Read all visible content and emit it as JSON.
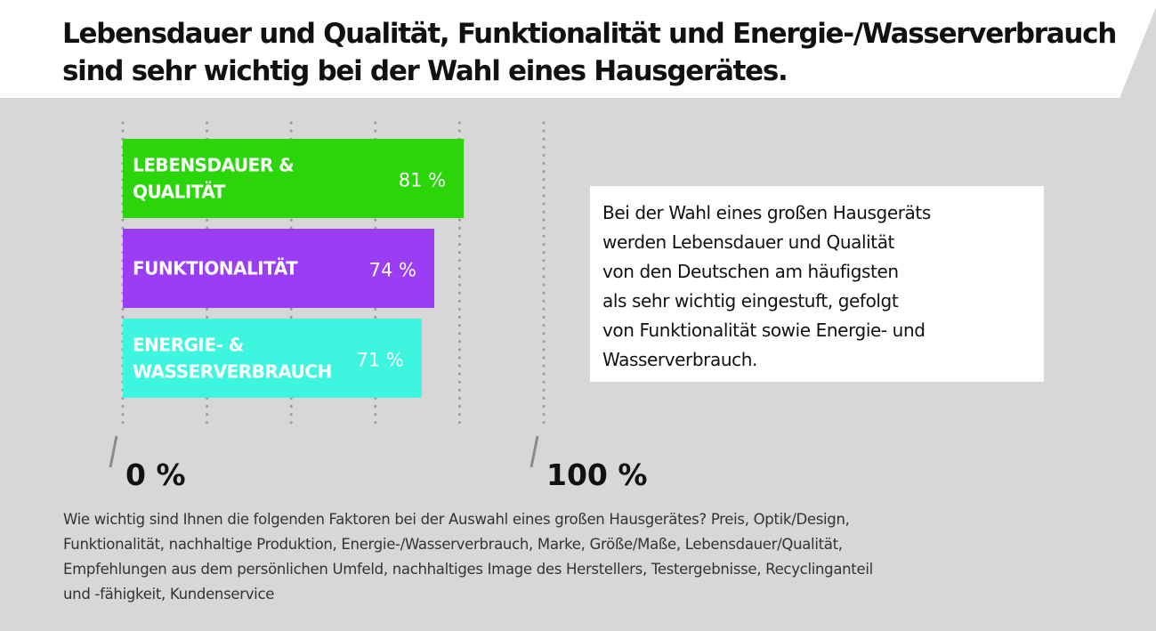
{
  "title": {
    "lines": [
      "Lebensdauer und Qualität, Funktionalität und Energie-/Wasserverbrauch",
      "sind sehr wichtig bei der Wahl eines Hausgerätes."
    ]
  },
  "colors": {
    "background": "#d7d7d7",
    "banner": "#ffffff",
    "grid": "#9a9a9a",
    "text": "#111111"
  },
  "chart_data": {
    "type": "bar",
    "orientation": "horizontal",
    "xlim": [
      0,
      100
    ],
    "grid": true,
    "categories": [
      {
        "label_lines": [
          "LEBENSDAUER &",
          "QUALITÄT"
        ],
        "value": 81,
        "value_label": "81 %",
        "color": "#2ad60a"
      },
      {
        "label_lines": [
          "FUNKTIONALITÄT"
        ],
        "value": 74,
        "value_label": "74 %",
        "color": "#9b3df5"
      },
      {
        "label_lines": [
          "ENERGIE- &",
          "WASSERVERBRAUCH"
        ],
        "value": 71,
        "value_label": "71 %",
        "color": "#3ef5e0"
      }
    ],
    "axis_labels": {
      "min": "0 %",
      "max": "100 %"
    }
  },
  "note": {
    "lines": [
      "Bei der Wahl eines großen Hausgeräts",
      "werden Lebensdauer und Qualität",
      "von den Deutschen am häufigsten",
      "als sehr wichtig eingestuft,  gefolgt",
      "von Funktionalität sowie Energie- und",
      "Wasserverbrauch."
    ]
  },
  "footnote": {
    "lines": [
      "Wie wichtig sind Ihnen die folgenden Faktoren bei der Auswahl eines großen Hausgerätes? Preis, Optik/Design,",
      "Funktionalität, nachhaltige Produktion, Energie-/Wasserverbrauch, Marke, Größe/Maße, Lebensdauer/Qualität,",
      "Empfehlungen aus dem persönlichen Umfeld, nachhaltiges Image des Herstellers, Testergebnisse, Recyclinganteil",
      "und -fähigkeit, Kundenservice"
    ]
  }
}
